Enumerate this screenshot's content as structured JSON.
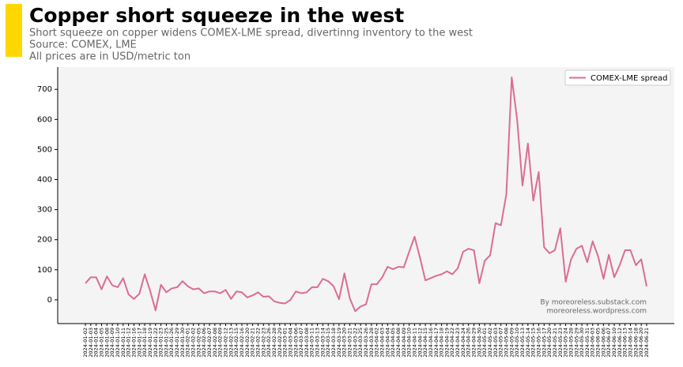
{
  "chart_data": {
    "type": "line",
    "title": "Copper short squeeze in the west",
    "subtitle": "Short squeeze on copper widens COMEX-LME spread, divertinng inventory to the west",
    "source": "Source: COMEX, LME",
    "note": "All prices are in USD/metric ton",
    "annotations": [
      "By moreoreless.substack.com",
      "moreoreless.wordpress.com"
    ],
    "categories": [
      "2024-01-02",
      "2024-01-03",
      "2024-01-04",
      "2024-01-05",
      "2024-01-08",
      "2024-01-09",
      "2024-01-10",
      "2024-01-11",
      "2024-01-12",
      "2024-01-16",
      "2024-01-17",
      "2024-01-18",
      "2024-01-19",
      "2024-01-22",
      "2024-01-23",
      "2024-01-25",
      "2024-01-26",
      "2024-01-29",
      "2024-01-30",
      "2024-02-01",
      "2024-02-02",
      "2024-02-05",
      "2024-02-06",
      "2024-02-07",
      "2024-02-08",
      "2024-02-09",
      "2024-02-12",
      "2024-02-13",
      "2024-02-15",
      "2024-02-16",
      "2024-02-20",
      "2024-02-21",
      "2024-02-22",
      "2024-02-23",
      "2024-02-26",
      "2024-02-28",
      "2024-02-29",
      "2024-03-01",
      "2024-03-04",
      "2024-03-06",
      "2024-03-07",
      "2024-03-08",
      "2024-03-11",
      "2024-03-13",
      "2024-03-14",
      "2024-03-15",
      "2024-03-18",
      "2024-03-19",
      "2024-03-20",
      "2024-03-21",
      "2024-03-22",
      "2024-03-25",
      "2024-03-26",
      "2024-03-28",
      "2024-04-02",
      "2024-04-03",
      "2024-04-04",
      "2024-04-05",
      "2024-04-08",
      "2024-04-09",
      "2024-04-10",
      "2024-04-11",
      "2024-04-12",
      "2024-04-15",
      "2024-04-16",
      "2024-04-17",
      "2024-04-18",
      "2024-04-19",
      "2024-04-22",
      "2024-04-23",
      "2024-04-24",
      "2024-04-26",
      "2024-04-29",
      "2024-04-30",
      "2024-05-01",
      "2024-05-02",
      "2024-05-03",
      "2024-05-07",
      "2024-05-08",
      "2024-05-09",
      "2024-05-10",
      "2024-05-13",
      "2024-05-14",
      "2024-05-15",
      "2024-05-16",
      "2024-05-17",
      "2024-05-20",
      "2024-05-21",
      "2024-05-23",
      "2024-05-24",
      "2024-05-28",
      "2024-05-29",
      "2024-05-30",
      "2024-05-31",
      "2024-06-03",
      "2024-06-05",
      "2024-06-06",
      "2024-06-07",
      "2024-06-10",
      "2024-06-12",
      "2024-06-13",
      "2024-06-14",
      "2024-06-18",
      "2024-06-20",
      "2024-06-21"
    ],
    "series": [
      {
        "name": "COMEX-LME spread",
        "color": "#db6d94",
        "values": [
          55,
          75,
          75,
          35,
          78,
          48,
          42,
          72,
          18,
          3,
          20,
          85,
          30,
          -35,
          50,
          25,
          38,
          42,
          62,
          45,
          35,
          38,
          22,
          28,
          28,
          22,
          33,
          3,
          28,
          25,
          8,
          15,
          25,
          10,
          12,
          -5,
          -10,
          -12,
          0,
          28,
          22,
          25,
          42,
          42,
          70,
          62,
          45,
          2,
          88,
          5,
          -38,
          -22,
          -15,
          52,
          52,
          75,
          110,
          102,
          110,
          108,
          160,
          210,
          140,
          65,
          72,
          80,
          85,
          95,
          85,
          105,
          160,
          170,
          165,
          55,
          130,
          148,
          255,
          248,
          350,
          740,
          600,
          380,
          520,
          330,
          425,
          175,
          155,
          165,
          238,
          60,
          135,
          170,
          180,
          125,
          195,
          145,
          70,
          150,
          75,
          115,
          165,
          165,
          115,
          135,
          45
        ]
      }
    ],
    "ylim": [
      -79,
      774
    ],
    "yticks": [
      0,
      100,
      200,
      300,
      400,
      500,
      600,
      700
    ],
    "grid": false,
    "legend": "upper right",
    "background": "#f4f4f4",
    "accent": "#ffd700"
  }
}
